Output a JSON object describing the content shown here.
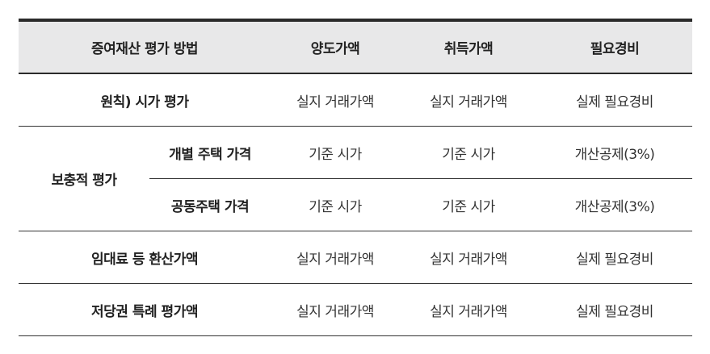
{
  "headers": [
    "증여재산 평가 방법",
    "양도가액",
    "취득가액",
    "필요경비"
  ],
  "rows": {
    "principle": {
      "label": "원칙) 시가 평가",
      "transfer": "실지 거래가액",
      "acquisition": "실지 거래가액",
      "expense": "실제 필요경비"
    },
    "supplementary": {
      "label": "보충적 평가",
      "sub": [
        {
          "label": "개별 주택 가격",
          "transfer": "기준 시가",
          "acquisition": "기준 시가",
          "expense": "개산공제(3%)"
        },
        {
          "label": "공동주택 가격",
          "transfer": "기준 시가",
          "acquisition": "기준 시가",
          "expense": "개산공제(3%)"
        }
      ]
    },
    "rent": {
      "label": "임대료 등 환산가액",
      "transfer": "실지 거래가액",
      "acquisition": "실지 거래가액",
      "expense": "실제 필요경비"
    },
    "mortgage": {
      "label": "저당권 특례 평가액",
      "transfer": "실지 거래가액",
      "acquisition": "실지 거래가액",
      "expense": "실제 필요경비"
    }
  }
}
